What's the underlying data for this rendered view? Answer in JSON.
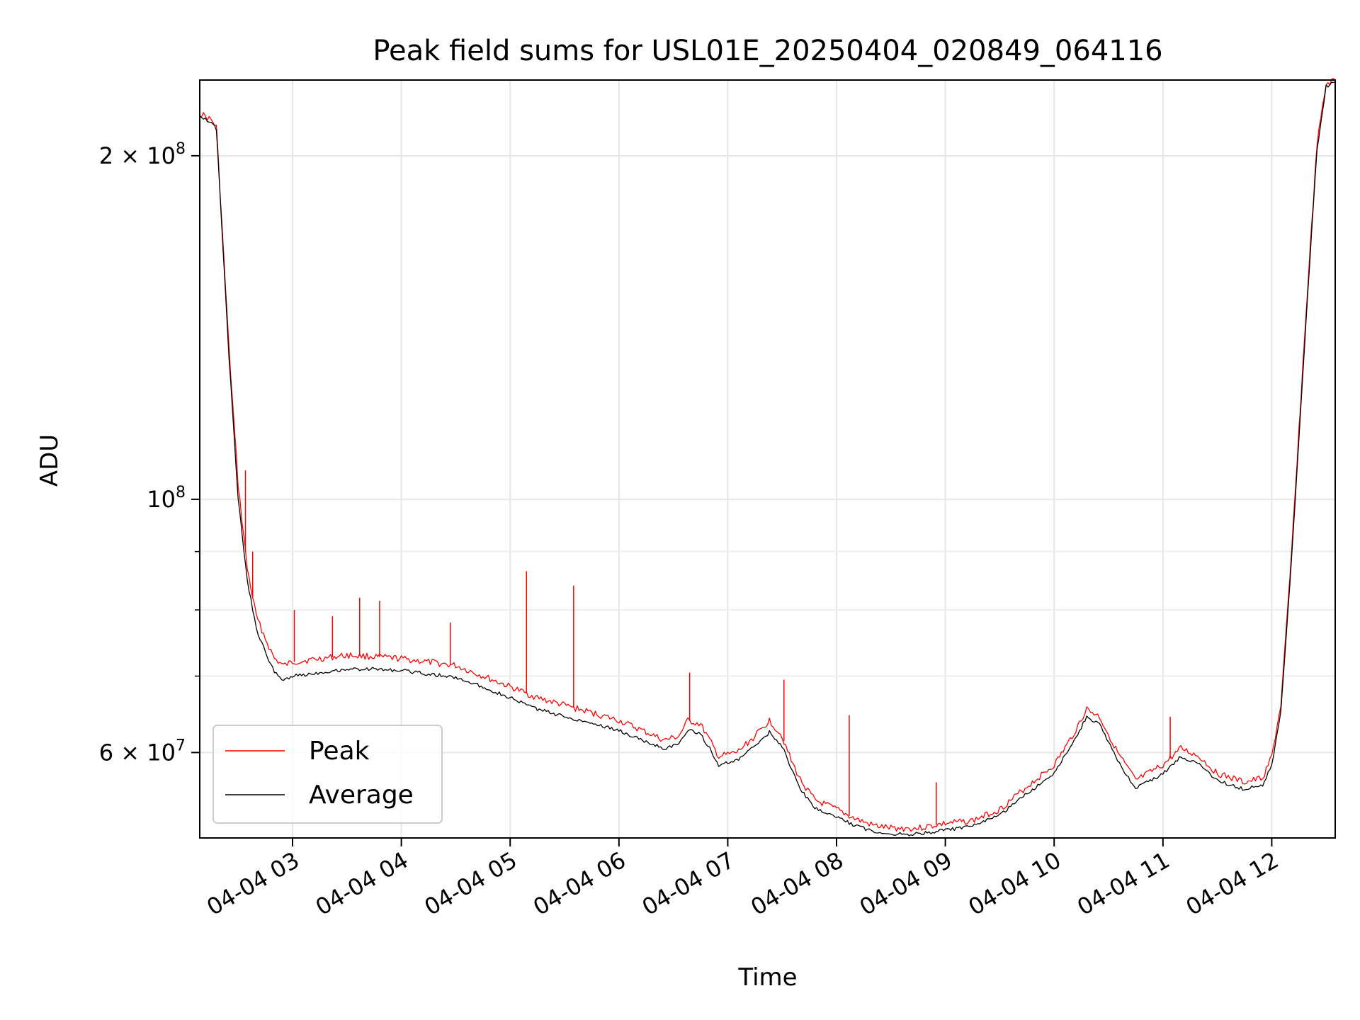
{
  "chart_data": {
    "type": "line",
    "title": "Peak field sums for USL01E_20250404_020849_064116",
    "xlabel": "Time",
    "ylabel": "ADU",
    "y_scale": "log",
    "ylim": [
      50500000,
      233000000
    ],
    "xlim": [
      "2025-04-04 02:08:49",
      "2025-04-04 12:35:00"
    ],
    "grid": true,
    "legend_position": "lower-left",
    "x_ticks": [
      {
        "label": "04-04 03",
        "time": "2025-04-04 03:00"
      },
      {
        "label": "04-04 04",
        "time": "2025-04-04 04:00"
      },
      {
        "label": "04-04 05",
        "time": "2025-04-04 05:00"
      },
      {
        "label": "04-04 06",
        "time": "2025-04-04 06:00"
      },
      {
        "label": "04-04 07",
        "time": "2025-04-04 07:00"
      },
      {
        "label": "04-04 08",
        "time": "2025-04-04 08:00"
      },
      {
        "label": "04-04 09",
        "time": "2025-04-04 09:00"
      },
      {
        "label": "04-04 10",
        "time": "2025-04-04 10:00"
      },
      {
        "label": "04-04 11",
        "time": "2025-04-04 11:00"
      },
      {
        "label": "04-04 12",
        "time": "2025-04-04 12:00"
      }
    ],
    "y_ticks_major": [
      {
        "value": 60000000,
        "mant": "6",
        "exp": "7"
      },
      {
        "value": 100000000,
        "mant": "",
        "exp": "8"
      },
      {
        "value": 200000000,
        "mant": "2",
        "exp": "8"
      }
    ],
    "y_ticks_minor": [
      70000000,
      80000000,
      90000000
    ],
    "series": [
      {
        "name": "Peak",
        "color": "#ff0000",
        "x": [
          "2025-04-04 02:08:49",
          "2025-04-04 02:15",
          "2025-04-04 02:18",
          "2025-04-04 02:25",
          "2025-04-04 02:30",
          "2025-04-04 02:35",
          "2025-04-04 02:40",
          "2025-04-04 02:45",
          "2025-04-04 02:50",
          "2025-04-04 02:55",
          "2025-04-04 03:00",
          "2025-04-04 03:15",
          "2025-04-04 03:30",
          "2025-04-04 03:45",
          "2025-04-04 04:00",
          "2025-04-04 04:15",
          "2025-04-04 04:30",
          "2025-04-04 04:45",
          "2025-04-04 05:00",
          "2025-04-04 05:15",
          "2025-04-04 05:30",
          "2025-04-04 05:45",
          "2025-04-04 06:00",
          "2025-04-04 06:15",
          "2025-04-04 06:25",
          "2025-04-04 06:33",
          "2025-04-04 06:38",
          "2025-04-04 06:45",
          "2025-04-04 06:50",
          "2025-04-04 06:55",
          "2025-04-04 07:05",
          "2025-04-04 07:15",
          "2025-04-04 07:23",
          "2025-04-04 07:30",
          "2025-04-04 07:35",
          "2025-04-04 07:40",
          "2025-04-04 07:48",
          "2025-04-04 08:00",
          "2025-04-04 08:10",
          "2025-04-04 08:20",
          "2025-04-04 08:30",
          "2025-04-04 08:45",
          "2025-04-04 09:00",
          "2025-04-04 09:15",
          "2025-04-04 09:30",
          "2025-04-04 09:45",
          "2025-04-04 10:00",
          "2025-04-04 10:10",
          "2025-04-04 10:18",
          "2025-04-04 10:25",
          "2025-04-04 10:35",
          "2025-04-04 10:45",
          "2025-04-04 11:00",
          "2025-04-04 11:10",
          "2025-04-04 11:20",
          "2025-04-04 11:30",
          "2025-04-04 11:45",
          "2025-04-04 11:55",
          "2025-04-04 12:00",
          "2025-04-04 12:05",
          "2025-04-04 12:10",
          "2025-04-04 12:15",
          "2025-04-04 12:20",
          "2025-04-04 12:25",
          "2025-04-04 12:30",
          "2025-04-04 12:35"
        ],
        "values": [
          218000000,
          215000000,
          212000000,
          135000000,
          103000000,
          87000000,
          79000000,
          75500000,
          72500000,
          71500000,
          72000000,
          72500000,
          73000000,
          72800000,
          72500000,
          72000000,
          71500000,
          70000000,
          68500000,
          67000000,
          66000000,
          65000000,
          64000000,
          62500000,
          61500000,
          62000000,
          64000000,
          63500000,
          61500000,
          59500000,
          60000000,
          62000000,
          64000000,
          62000000,
          59000000,
          56800000,
          54500000,
          53500000,
          52500000,
          51800000,
          51500000,
          51500000,
          52000000,
          52300000,
          53500000,
          56000000,
          58500000,
          62000000,
          65500000,
          64500000,
          60000000,
          56700000,
          58500000,
          60500000,
          59500000,
          57500000,
          56500000,
          57000000,
          59500000,
          66000000,
          85000000,
          115000000,
          155000000,
          205000000,
          231000000,
          233000000
        ]
      },
      {
        "name": "Average",
        "color": "#000000",
        "x": [
          "2025-04-04 02:08:49",
          "2025-04-04 02:15",
          "2025-04-04 02:18",
          "2025-04-04 02:25",
          "2025-04-04 02:30",
          "2025-04-04 02:35",
          "2025-04-04 02:40",
          "2025-04-04 02:45",
          "2025-04-04 02:50",
          "2025-04-04 02:55",
          "2025-04-04 03:00",
          "2025-04-04 03:15",
          "2025-04-04 03:30",
          "2025-04-04 03:45",
          "2025-04-04 04:00",
          "2025-04-04 04:15",
          "2025-04-04 04:30",
          "2025-04-04 04:45",
          "2025-04-04 05:00",
          "2025-04-04 05:15",
          "2025-04-04 05:30",
          "2025-04-04 05:45",
          "2025-04-04 06:00",
          "2025-04-04 06:15",
          "2025-04-04 06:25",
          "2025-04-04 06:33",
          "2025-04-04 06:38",
          "2025-04-04 06:45",
          "2025-04-04 06:50",
          "2025-04-04 06:55",
          "2025-04-04 07:05",
          "2025-04-04 07:15",
          "2025-04-04 07:23",
          "2025-04-04 07:30",
          "2025-04-04 07:35",
          "2025-04-04 07:40",
          "2025-04-04 07:48",
          "2025-04-04 08:00",
          "2025-04-04 08:10",
          "2025-04-04 08:20",
          "2025-04-04 08:30",
          "2025-04-04 08:45",
          "2025-04-04 09:00",
          "2025-04-04 09:15",
          "2025-04-04 09:30",
          "2025-04-04 09:45",
          "2025-04-04 10:00",
          "2025-04-04 10:10",
          "2025-04-04 10:18",
          "2025-04-04 10:25",
          "2025-04-04 10:35",
          "2025-04-04 10:45",
          "2025-04-04 11:00",
          "2025-04-04 11:10",
          "2025-04-04 11:20",
          "2025-04-04 11:30",
          "2025-04-04 11:45",
          "2025-04-04 11:55",
          "2025-04-04 12:00",
          "2025-04-04 12:05",
          "2025-04-04 12:10",
          "2025-04-04 12:15",
          "2025-04-04 12:20",
          "2025-04-04 12:25",
          "2025-04-04 12:30",
          "2025-04-04 12:35"
        ],
        "values": [
          217000000,
          214000000,
          211000000,
          133000000,
          100000000,
          85000000,
          77000000,
          73500000,
          70500000,
          69500000,
          70000000,
          70500000,
          71000000,
          71000000,
          70800000,
          70300000,
          69800000,
          68500000,
          67000000,
          65500000,
          64500000,
          63700000,
          62700000,
          61300000,
          60500000,
          61000000,
          62800000,
          62300000,
          60500000,
          58500000,
          59000000,
          60800000,
          62500000,
          60800000,
          58000000,
          55800000,
          53600000,
          52700000,
          51800000,
          51200000,
          50900000,
          50900000,
          51300000,
          51700000,
          52900000,
          55200000,
          57600000,
          61000000,
          64500000,
          63500000,
          59000000,
          55800000,
          57500000,
          59500000,
          58600000,
          56700000,
          55700000,
          56200000,
          58500000,
          65000000,
          84000000,
          113000000,
          153000000,
          203000000,
          230000000,
          232000000
        ]
      }
    ],
    "spikes": [
      {
        "time": "2025-04-04 02:34",
        "value": 106000000
      },
      {
        "time": "2025-04-04 02:38",
        "value": 90000000
      },
      {
        "time": "2025-04-04 03:01",
        "value": 80000000
      },
      {
        "time": "2025-04-04 03:22",
        "value": 79000000
      },
      {
        "time": "2025-04-04 03:37",
        "value": 82000000
      },
      {
        "time": "2025-04-04 03:48",
        "value": 81500000
      },
      {
        "time": "2025-04-04 04:27",
        "value": 78000000
      },
      {
        "time": "2025-04-04 05:09",
        "value": 86500000
      },
      {
        "time": "2025-04-04 05:35",
        "value": 84000000
      },
      {
        "time": "2025-04-04 06:39",
        "value": 70500000
      },
      {
        "time": "2025-04-04 07:31",
        "value": 69500000
      },
      {
        "time": "2025-04-04 08:07",
        "value": 64700000
      },
      {
        "time": "2025-04-04 08:55",
        "value": 56500000
      },
      {
        "time": "2025-04-04 11:04",
        "value": 64500000
      }
    ]
  }
}
